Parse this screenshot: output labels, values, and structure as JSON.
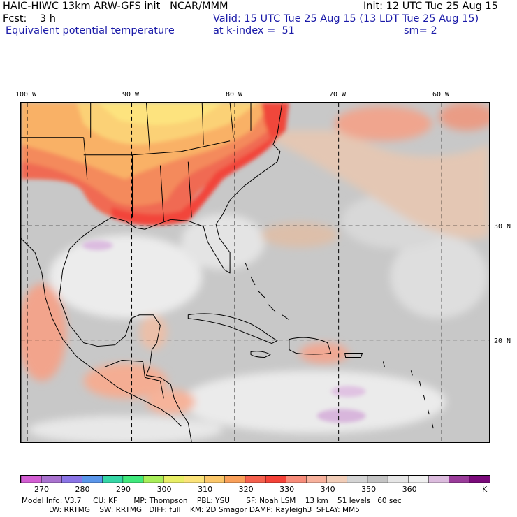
{
  "header": {
    "model_line": "HAIC-HIWC 13km ARW-GFS init   NCAR/MMM",
    "init": "Init: 12 UTC Tue 25 Aug 15",
    "fcst": "Fcst:    3 h",
    "valid": "Valid: 15 UTC Tue 25 Aug 15 (13 LDT Tue 25 Aug 15)",
    "field": "Equivalent potential temperature",
    "level": "at k-index =  51",
    "smooth": "sm= 2"
  },
  "map": {
    "lon_labels": [
      "100 W",
      "90 W",
      "80 W",
      "70 W",
      "60 W"
    ],
    "lat_labels": [
      "30 N",
      "20 N"
    ],
    "colors": {
      "land_outline": "#000000",
      "grid": "#000000"
    }
  },
  "colorbar": {
    "unit": "K",
    "tick_labels": [
      "270",
      "280",
      "290",
      "300",
      "310",
      "320",
      "330",
      "340",
      "350",
      "360"
    ],
    "colors": [
      "#d35ed3",
      "#a972cf",
      "#8a74e6",
      "#5a96ea",
      "#36d6a6",
      "#40e87c",
      "#a8ee5a",
      "#e8ee66",
      "#fbe37a",
      "#fbc76a",
      "#f9a05a",
      "#f5614e",
      "#f44238",
      "#f78c7a",
      "#f7b19c",
      "#f1cdb8",
      "#d4d4d4",
      "#c4c4c4",
      "#e6e6e6",
      "#f0f0f0",
      "#dcbcde",
      "#9a3c9a",
      "#7a0a7a"
    ]
  },
  "footer": {
    "line1": "Model Info: V3.7     CU: KF       MP: Thompson    PBL: YSU       SF: Noah LSM    13 km    51 levels   60 sec",
    "line2": "LW: RRTMG    SW: RRTMG   DIFF: full    KM: 2D Smagor DAMP: Rayleigh3  SFLAY: MM5"
  }
}
